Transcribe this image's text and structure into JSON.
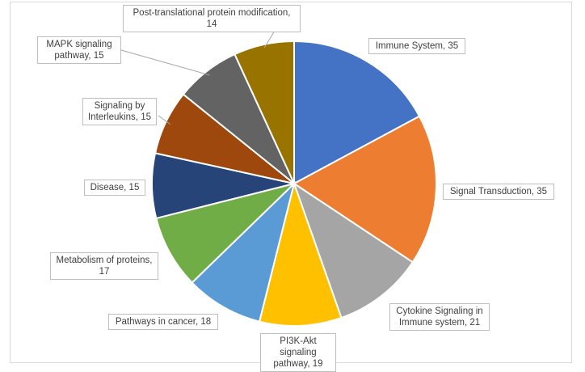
{
  "chart_data": {
    "type": "pie",
    "title": "",
    "slices": [
      {
        "label": "Immune System",
        "value": 35,
        "color": "#4472c4",
        "label_text": "Immune System, 35"
      },
      {
        "label": "Signal Transduction",
        "value": 35,
        "color": "#ed7d31",
        "label_text": "Signal Transduction, 35"
      },
      {
        "label": "Cytokine Signaling in Immune system",
        "value": 21,
        "color": "#a5a5a5",
        "label_text": "Cytokine Signaling in Immune system, 21"
      },
      {
        "label": "PI3K-Akt signaling pathway",
        "value": 19,
        "color": "#ffc000",
        "label_text": "PI3K-Akt signaling pathway, 19"
      },
      {
        "label": "Pathways in cancer",
        "value": 18,
        "color": "#5b9bd5",
        "label_text": "Pathways in cancer, 18"
      },
      {
        "label": "Metabolism of proteins",
        "value": 17,
        "color": "#70ad47",
        "label_text": "Metabolism of proteins, 17"
      },
      {
        "label": "Disease",
        "value": 15,
        "color": "#264478",
        "label_text": "Disease, 15"
      },
      {
        "label": "Signaling by Interleukins",
        "value": 15,
        "color": "#9e480e",
        "label_text": "Signaling by Interleukins, 15"
      },
      {
        "label": "MAPK signaling pathway",
        "value": 15,
        "color": "#636363",
        "label_text": "MAPK signaling pathway, 15"
      },
      {
        "label": "Post-translational protein modification",
        "value": 14,
        "color": "#997300",
        "label_text": "Post-translational protein modification, 14"
      }
    ]
  }
}
